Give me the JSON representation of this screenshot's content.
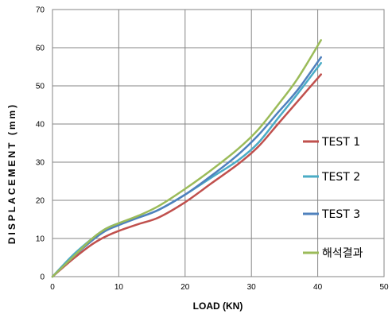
{
  "chart_data": {
    "type": "line",
    "xlabel": "LOAD  (KN)",
    "ylabel": "DISPLACEMENT  (mm)",
    "xlim": [
      0,
      50
    ],
    "ylim": [
      0,
      70
    ],
    "xticks": [
      "0",
      "10",
      "20",
      "30",
      "40",
      "50"
    ],
    "yticks": [
      "0",
      "10",
      "20",
      "30",
      "40",
      "50",
      "60",
      "70"
    ],
    "grid": true,
    "legend_position": "right",
    "series": [
      {
        "name": "TEST 1",
        "color": "#c0504d",
        "x": [
          0,
          3,
          6,
          8,
          10,
          13,
          16,
          20,
          24,
          28,
          31,
          34,
          37,
          40.5
        ],
        "y": [
          0,
          4.5,
          8.5,
          10.5,
          12,
          13.8,
          15.5,
          19.5,
          24.5,
          29.5,
          34,
          40,
          46,
          53
        ]
      },
      {
        "name": "TEST 2",
        "color": "#4bacc6",
        "x": [
          0,
          3,
          6,
          8,
          10,
          13,
          16,
          20,
          24,
          28,
          31,
          34,
          37,
          40.5
        ],
        "y": [
          0,
          5.5,
          10,
          12.5,
          14,
          15.5,
          17.5,
          21.5,
          26,
          30.5,
          35,
          41.5,
          48,
          56
        ]
      },
      {
        "name": "TEST 3",
        "color": "#4f81bd",
        "x": [
          0,
          3,
          6,
          8,
          10,
          13,
          16,
          20,
          24,
          28,
          31,
          34,
          37,
          40.5
        ],
        "y": [
          0,
          5,
          9.5,
          12,
          13.5,
          15.5,
          17.5,
          21.5,
          26.5,
          32,
          37,
          43,
          49,
          57.5
        ]
      },
      {
        "name": "해석결과",
        "color": "#9bbb59",
        "x": [
          0,
          3,
          6,
          8,
          10,
          13,
          16,
          20,
          24,
          28,
          31,
          34,
          37,
          40.5
        ],
        "y": [
          0,
          5,
          10,
          12.5,
          14,
          16,
          18.5,
          23,
          28,
          33.5,
          38.5,
          45,
          52,
          62
        ]
      }
    ]
  }
}
